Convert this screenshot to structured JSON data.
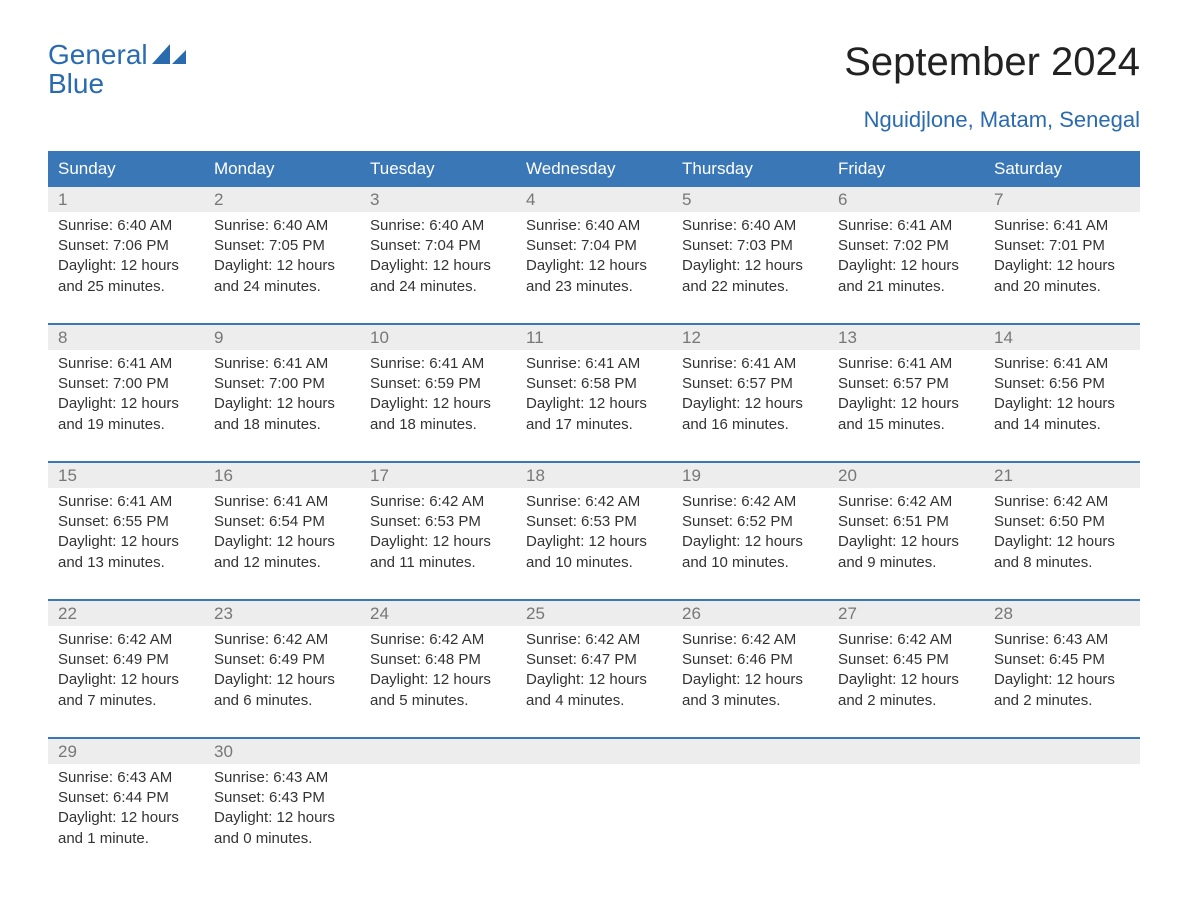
{
  "brand": {
    "line1": "General",
    "line2": "Blue",
    "color": "#2a6bb0"
  },
  "title": "September 2024",
  "subtitle": "Nguidjlone, Matam, Senegal",
  "colors": {
    "header_bg": "#3a77b7",
    "header_text": "#ffffff",
    "daynum_bg": "#ededed",
    "daynum_text": "#777777",
    "body_text": "#333333",
    "background": "#ffffff",
    "separator": "#3a77b7"
  },
  "weekdays": [
    "Sunday",
    "Monday",
    "Tuesday",
    "Wednesday",
    "Thursday",
    "Friday",
    "Saturday"
  ],
  "layout": {
    "columns": 7,
    "rows": 5,
    "first_day_column": 0
  },
  "days": [
    {
      "n": "1",
      "sunrise": "Sunrise: 6:40 AM",
      "sunset": "Sunset: 7:06 PM",
      "d1": "Daylight: 12 hours",
      "d2": "and 25 minutes."
    },
    {
      "n": "2",
      "sunrise": "Sunrise: 6:40 AM",
      "sunset": "Sunset: 7:05 PM",
      "d1": "Daylight: 12 hours",
      "d2": "and 24 minutes."
    },
    {
      "n": "3",
      "sunrise": "Sunrise: 6:40 AM",
      "sunset": "Sunset: 7:04 PM",
      "d1": "Daylight: 12 hours",
      "d2": "and 24 minutes."
    },
    {
      "n": "4",
      "sunrise": "Sunrise: 6:40 AM",
      "sunset": "Sunset: 7:04 PM",
      "d1": "Daylight: 12 hours",
      "d2": "and 23 minutes."
    },
    {
      "n": "5",
      "sunrise": "Sunrise: 6:40 AM",
      "sunset": "Sunset: 7:03 PM",
      "d1": "Daylight: 12 hours",
      "d2": "and 22 minutes."
    },
    {
      "n": "6",
      "sunrise": "Sunrise: 6:41 AM",
      "sunset": "Sunset: 7:02 PM",
      "d1": "Daylight: 12 hours",
      "d2": "and 21 minutes."
    },
    {
      "n": "7",
      "sunrise": "Sunrise: 6:41 AM",
      "sunset": "Sunset: 7:01 PM",
      "d1": "Daylight: 12 hours",
      "d2": "and 20 minutes."
    },
    {
      "n": "8",
      "sunrise": "Sunrise: 6:41 AM",
      "sunset": "Sunset: 7:00 PM",
      "d1": "Daylight: 12 hours",
      "d2": "and 19 minutes."
    },
    {
      "n": "9",
      "sunrise": "Sunrise: 6:41 AM",
      "sunset": "Sunset: 7:00 PM",
      "d1": "Daylight: 12 hours",
      "d2": "and 18 minutes."
    },
    {
      "n": "10",
      "sunrise": "Sunrise: 6:41 AM",
      "sunset": "Sunset: 6:59 PM",
      "d1": "Daylight: 12 hours",
      "d2": "and 18 minutes."
    },
    {
      "n": "11",
      "sunrise": "Sunrise: 6:41 AM",
      "sunset": "Sunset: 6:58 PM",
      "d1": "Daylight: 12 hours",
      "d2": "and 17 minutes."
    },
    {
      "n": "12",
      "sunrise": "Sunrise: 6:41 AM",
      "sunset": "Sunset: 6:57 PM",
      "d1": "Daylight: 12 hours",
      "d2": "and 16 minutes."
    },
    {
      "n": "13",
      "sunrise": "Sunrise: 6:41 AM",
      "sunset": "Sunset: 6:57 PM",
      "d1": "Daylight: 12 hours",
      "d2": "and 15 minutes."
    },
    {
      "n": "14",
      "sunrise": "Sunrise: 6:41 AM",
      "sunset": "Sunset: 6:56 PM",
      "d1": "Daylight: 12 hours",
      "d2": "and 14 minutes."
    },
    {
      "n": "15",
      "sunrise": "Sunrise: 6:41 AM",
      "sunset": "Sunset: 6:55 PM",
      "d1": "Daylight: 12 hours",
      "d2": "and 13 minutes."
    },
    {
      "n": "16",
      "sunrise": "Sunrise: 6:41 AM",
      "sunset": "Sunset: 6:54 PM",
      "d1": "Daylight: 12 hours",
      "d2": "and 12 minutes."
    },
    {
      "n": "17",
      "sunrise": "Sunrise: 6:42 AM",
      "sunset": "Sunset: 6:53 PM",
      "d1": "Daylight: 12 hours",
      "d2": "and 11 minutes."
    },
    {
      "n": "18",
      "sunrise": "Sunrise: 6:42 AM",
      "sunset": "Sunset: 6:53 PM",
      "d1": "Daylight: 12 hours",
      "d2": "and 10 minutes."
    },
    {
      "n": "19",
      "sunrise": "Sunrise: 6:42 AM",
      "sunset": "Sunset: 6:52 PM",
      "d1": "Daylight: 12 hours",
      "d2": "and 10 minutes."
    },
    {
      "n": "20",
      "sunrise": "Sunrise: 6:42 AM",
      "sunset": "Sunset: 6:51 PM",
      "d1": "Daylight: 12 hours",
      "d2": "and 9 minutes."
    },
    {
      "n": "21",
      "sunrise": "Sunrise: 6:42 AM",
      "sunset": "Sunset: 6:50 PM",
      "d1": "Daylight: 12 hours",
      "d2": "and 8 minutes."
    },
    {
      "n": "22",
      "sunrise": "Sunrise: 6:42 AM",
      "sunset": "Sunset: 6:49 PM",
      "d1": "Daylight: 12 hours",
      "d2": "and 7 minutes."
    },
    {
      "n": "23",
      "sunrise": "Sunrise: 6:42 AM",
      "sunset": "Sunset: 6:49 PM",
      "d1": "Daylight: 12 hours",
      "d2": "and 6 minutes."
    },
    {
      "n": "24",
      "sunrise": "Sunrise: 6:42 AM",
      "sunset": "Sunset: 6:48 PM",
      "d1": "Daylight: 12 hours",
      "d2": "and 5 minutes."
    },
    {
      "n": "25",
      "sunrise": "Sunrise: 6:42 AM",
      "sunset": "Sunset: 6:47 PM",
      "d1": "Daylight: 12 hours",
      "d2": "and 4 minutes."
    },
    {
      "n": "26",
      "sunrise": "Sunrise: 6:42 AM",
      "sunset": "Sunset: 6:46 PM",
      "d1": "Daylight: 12 hours",
      "d2": "and 3 minutes."
    },
    {
      "n": "27",
      "sunrise": "Sunrise: 6:42 AM",
      "sunset": "Sunset: 6:45 PM",
      "d1": "Daylight: 12 hours",
      "d2": "and 2 minutes."
    },
    {
      "n": "28",
      "sunrise": "Sunrise: 6:43 AM",
      "sunset": "Sunset: 6:45 PM",
      "d1": "Daylight: 12 hours",
      "d2": "and 2 minutes."
    },
    {
      "n": "29",
      "sunrise": "Sunrise: 6:43 AM",
      "sunset": "Sunset: 6:44 PM",
      "d1": "Daylight: 12 hours",
      "d2": "and 1 minute."
    },
    {
      "n": "30",
      "sunrise": "Sunrise: 6:43 AM",
      "sunset": "Sunset: 6:43 PM",
      "d1": "Daylight: 12 hours",
      "d2": "and 0 minutes."
    }
  ]
}
